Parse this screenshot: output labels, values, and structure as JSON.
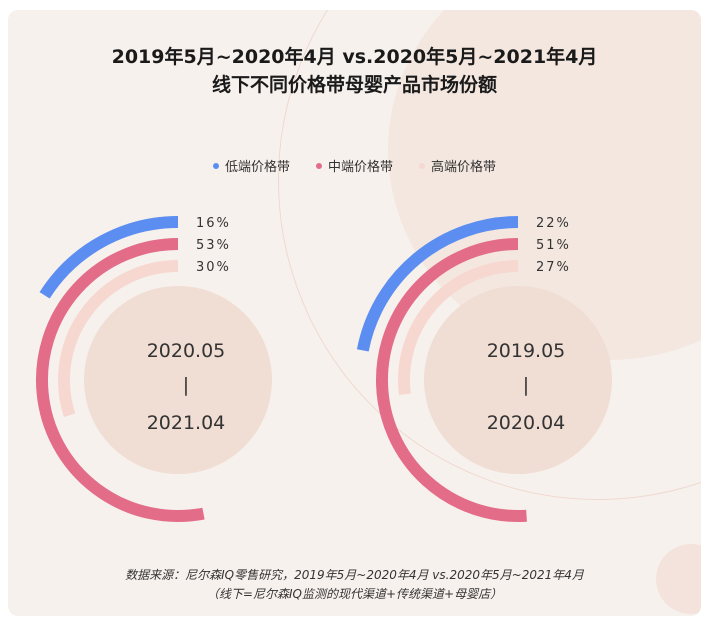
{
  "title": {
    "line1": "2019年5月~2020年4月 vs.2020年5月~2021年4月",
    "line2": "线下不同价格带母婴产品市场份额"
  },
  "legend": [
    {
      "label": "低端价格带",
      "color": "#5b8ef0"
    },
    {
      "label": "中端价格带",
      "color": "#e36c89"
    },
    {
      "label": "高端价格带",
      "color": "#f6d8d0"
    }
  ],
  "chart_data": {
    "type": "radial-bar",
    "series": [
      {
        "name": "低端价格带",
        "color": "#5b8ef0"
      },
      {
        "name": "中端价格带",
        "color": "#e36c89"
      },
      {
        "name": "高端价格带",
        "color": "#f6d8d0"
      }
    ],
    "charts": [
      {
        "period_start": "2020.05",
        "period_sep": "|",
        "period_end": "2021.04",
        "values": [
          16,
          53,
          30
        ],
        "labels": [
          "16%",
          "53%",
          "30%"
        ]
      },
      {
        "period_start": "2019.05",
        "period_sep": "|",
        "period_end": "2020.04",
        "values": [
          22,
          51,
          27
        ],
        "labels": [
          "22%",
          "51%",
          "27%"
        ]
      }
    ]
  },
  "source": {
    "line1": "数据来源：尼尔森IQ零售研究，2019年5月~2020年4月 vs.2020年5月~2021年4月",
    "line2": "（线下=尼尔森IQ监测的现代渠道+传统渠道+母婴店）"
  }
}
